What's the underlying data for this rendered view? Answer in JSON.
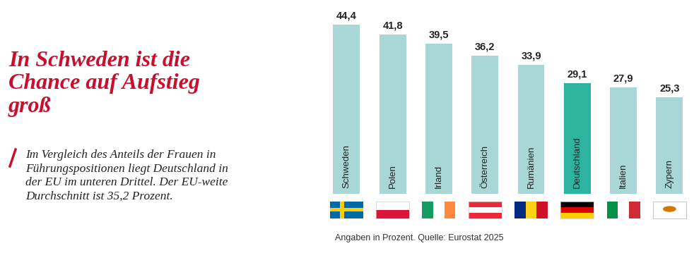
{
  "chart_data": {
    "type": "bar",
    "title": "In Schweden ist die Chance auf Aufstieg groß",
    "subtitle": "Im Vergleich des Anteils der Frauen in Führungspositionen liegt Deutschland in der EU im unteren Drittel. Der EU-weite Durchschnitt ist 35,2 Prozent.",
    "source": "Angaben in Prozent. Quelle: Eurostat 2025",
    "categories": [
      "Schweden",
      "Polen",
      "Irland",
      "Österreich",
      "Rumänien",
      "Deutschland",
      "Italien",
      "Zypern"
    ],
    "values": [
      44.4,
      41.8,
      39.5,
      36.2,
      33.9,
      29.1,
      27.9,
      25.3
    ],
    "value_labels": [
      "44,4",
      "41,8",
      "39,5",
      "36,2",
      "33,9",
      "29,1",
      "27,9",
      "25,3"
    ],
    "colors": [
      "#a9d6d7",
      "#a9d6d7",
      "#a9d6d7",
      "#a9d6d7",
      "#a9d6d7",
      "#2fb3a1",
      "#a9d6d7",
      "#a9d6d7"
    ],
    "ylim": [
      0,
      44.4
    ],
    "data_labels": true,
    "tick_labels": false
  }
}
